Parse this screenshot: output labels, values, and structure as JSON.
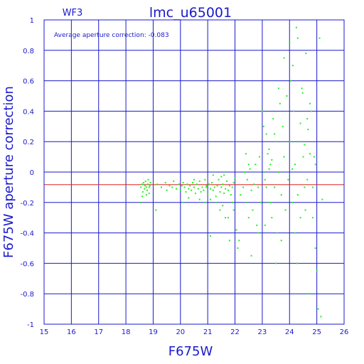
{
  "chart_data": {
    "type": "scatter",
    "title": "lmc_u65001",
    "chip_label": "WF3",
    "annotation": "Average aperture correction: -0.083",
    "xlabel": "F675W",
    "ylabel": "F675W aperture correction",
    "xlim": [
      15,
      26
    ],
    "ylim": [
      -1,
      1
    ],
    "xticks": [
      "15",
      "16",
      "17",
      "18",
      "19",
      "20",
      "21",
      "22",
      "23",
      "24",
      "25",
      "26"
    ],
    "yticks": [
      "1",
      "0.8",
      "0.6",
      "0.4",
      "0.2",
      "0",
      "-0.2",
      "-0.4",
      "-0.6",
      "-0.8",
      "-1"
    ],
    "grid": true,
    "reference_line": {
      "y": -0.083,
      "color": "#dd2222"
    },
    "colors": {
      "axes": "#1a1acc",
      "points": "#22ee22",
      "reference": "#dd2222"
    },
    "series": [
      {
        "points": [
          [
            18.55,
            -0.1
          ],
          [
            18.6,
            -0.08
          ],
          [
            18.62,
            -0.13
          ],
          [
            18.65,
            -0.07
          ],
          [
            18.68,
            -0.11
          ],
          [
            18.7,
            -0.09
          ],
          [
            18.72,
            -0.06
          ],
          [
            18.75,
            -0.1
          ],
          [
            18.78,
            -0.12
          ],
          [
            18.8,
            -0.08
          ],
          [
            18.82,
            -0.05
          ],
          [
            18.85,
            -0.1
          ],
          [
            18.88,
            -0.09
          ],
          [
            18.9,
            -0.07
          ],
          [
            18.55,
            -0.2
          ],
          [
            18.6,
            -0.16
          ],
          [
            18.75,
            -0.15
          ],
          [
            18.85,
            -0.14
          ],
          [
            19.1,
            -0.25
          ],
          [
            19.15,
            -0.08
          ],
          [
            19.3,
            -0.1
          ],
          [
            19.45,
            -0.07
          ],
          [
            19.5,
            -0.12
          ],
          [
            19.6,
            -0.09
          ],
          [
            19.7,
            -0.1
          ],
          [
            19.75,
            -0.06
          ],
          [
            19.85,
            -0.11
          ],
          [
            19.95,
            -0.08
          ],
          [
            20.0,
            -0.12
          ],
          [
            20.05,
            -0.09
          ],
          [
            20.1,
            -0.07
          ],
          [
            20.15,
            -0.1
          ],
          [
            20.2,
            -0.13
          ],
          [
            20.25,
            -0.08
          ],
          [
            20.3,
            -0.11
          ],
          [
            20.35,
            -0.09
          ],
          [
            20.4,
            -0.12
          ],
          [
            20.45,
            -0.07
          ],
          [
            20.5,
            -0.1
          ],
          [
            20.55,
            -0.14
          ],
          [
            20.6,
            -0.08
          ],
          [
            20.65,
            -0.11
          ],
          [
            20.7,
            -0.06
          ],
          [
            20.75,
            -0.13
          ],
          [
            20.8,
            -0.1
          ],
          [
            20.85,
            -0.12
          ],
          [
            20.9,
            -0.05
          ],
          [
            20.95,
            -0.09
          ],
          [
            21.0,
            -0.15
          ],
          [
            21.05,
            -0.08
          ],
          [
            21.1,
            -0.11
          ],
          [
            21.15,
            -0.07
          ],
          [
            21.2,
            -0.12
          ],
          [
            21.25,
            -0.1
          ],
          [
            21.3,
            -0.16
          ],
          [
            21.35,
            -0.09
          ],
          [
            21.4,
            -0.05
          ],
          [
            21.45,
            -0.13
          ],
          [
            21.5,
            -0.1
          ],
          [
            21.55,
            -0.08
          ],
          [
            21.6,
            -0.14
          ],
          [
            21.65,
            -0.11
          ],
          [
            21.7,
            -0.06
          ],
          [
            21.75,
            -0.12
          ],
          [
            21.8,
            -0.09
          ],
          [
            21.85,
            -0.15
          ],
          [
            21.9,
            -0.1
          ],
          [
            21.95,
            -0.07
          ],
          [
            20.1,
            -0.2
          ],
          [
            20.3,
            -0.17
          ],
          [
            20.5,
            -0.05
          ],
          [
            20.7,
            -0.18
          ],
          [
            20.9,
            -0.2
          ],
          [
            21.1,
            -0.18
          ],
          [
            21.2,
            -0.02
          ],
          [
            21.3,
            -0.2
          ],
          [
            21.45,
            -0.25
          ],
          [
            21.55,
            -0.22
          ],
          [
            21.65,
            -0.3
          ],
          [
            21.75,
            -0.3
          ],
          [
            21.8,
            -0.45
          ],
          [
            21.9,
            -0.2
          ],
          [
            21.95,
            -0.25
          ],
          [
            22.0,
            -0.04
          ],
          [
            22.05,
            -0.38
          ],
          [
            22.1,
            -0.5
          ],
          [
            22.15,
            -0.45
          ],
          [
            21.1,
            -0.42
          ],
          [
            21.5,
            -0.03
          ],
          [
            20.95,
            -0.1
          ],
          [
            21.6,
            -0.02
          ],
          [
            22.2,
            -0.15
          ],
          [
            22.3,
            -0.1
          ],
          [
            22.35,
            0.0
          ],
          [
            22.4,
            -0.2
          ],
          [
            22.45,
            -0.05
          ],
          [
            22.5,
            -0.3
          ],
          [
            22.55,
            0.02
          ],
          [
            22.6,
            -0.12
          ],
          [
            22.65,
            -0.25
          ],
          [
            22.7,
            -0.08
          ],
          [
            22.75,
            0.05
          ],
          [
            22.8,
            -0.35
          ],
          [
            22.85,
            -0.1
          ],
          [
            22.9,
            0.1
          ],
          [
            22.95,
            -0.2
          ],
          [
            22.4,
            0.12
          ],
          [
            22.6,
            -0.55
          ],
          [
            22.85,
            -0.4
          ],
          [
            22.5,
            0.05
          ],
          [
            23.0,
            0.4
          ],
          [
            23.05,
            0.3
          ],
          [
            23.1,
            -0.05
          ],
          [
            23.15,
            0.25
          ],
          [
            23.2,
            -0.2
          ],
          [
            23.25,
            0.15
          ],
          [
            23.3,
            0.05
          ],
          [
            23.35,
            -0.3
          ],
          [
            23.4,
            0.35
          ],
          [
            23.45,
            -0.1
          ],
          [
            23.5,
            0.2
          ],
          [
            23.55,
            -0.4
          ],
          [
            23.6,
            0.0
          ],
          [
            23.65,
            0.45
          ],
          [
            23.7,
            -0.15
          ],
          [
            23.75,
            0.3
          ],
          [
            23.8,
            0.1
          ],
          [
            23.85,
            -0.25
          ],
          [
            23.9,
            0.5
          ],
          [
            23.95,
            -0.05
          ],
          [
            23.05,
            0.0
          ],
          [
            23.15,
            -0.1
          ],
          [
            23.25,
            0.02
          ],
          [
            23.35,
            0.08
          ],
          [
            23.5,
            -0.6
          ],
          [
            23.7,
            -0.45
          ],
          [
            23.6,
            0.55
          ],
          [
            23.8,
            0.75
          ],
          [
            23.1,
            -0.35
          ],
          [
            23.2,
            0.12
          ],
          [
            23.45,
            0.25
          ],
          [
            23.3,
            -0.2
          ],
          [
            24.0,
            0.85
          ],
          [
            24.05,
            0.6
          ],
          [
            24.1,
            -0.2
          ],
          [
            24.15,
            0.4
          ],
          [
            24.2,
            0.05
          ],
          [
            24.25,
            0.95
          ],
          [
            24.3,
            0.88
          ],
          [
            24.35,
            0.2
          ],
          [
            24.4,
            -0.3
          ],
          [
            24.45,
            0.55
          ],
          [
            24.5,
            0.1
          ],
          [
            24.55,
            -0.1
          ],
          [
            24.6,
            0.78
          ],
          [
            24.65,
            0.35
          ],
          [
            24.7,
            -0.8
          ],
          [
            24.75,
            0.12
          ],
          [
            24.8,
            0.4
          ],
          [
            24.85,
            -0.3
          ],
          [
            24.9,
            0.1
          ],
          [
            24.95,
            -0.5
          ],
          [
            25.0,
            -0.65
          ],
          [
            25.05,
            -0.9
          ],
          [
            25.1,
            0.88
          ],
          [
            25.15,
            -0.95
          ],
          [
            25.2,
            -0.18
          ],
          [
            24.1,
            0.02
          ],
          [
            24.2,
            -0.4
          ],
          [
            24.3,
            -0.15
          ],
          [
            24.4,
            0.32
          ],
          [
            24.55,
            0.18
          ],
          [
            24.65,
            -0.05
          ],
          [
            24.75,
            0.45
          ],
          [
            24.85,
            -0.1
          ],
          [
            24.95,
            0.05
          ],
          [
            24.02,
            0.2
          ],
          [
            24.12,
            0.7
          ],
          [
            24.28,
            -0.6
          ],
          [
            24.48,
            0.52
          ],
          [
            24.58,
            -0.25
          ],
          [
            24.68,
            0.28
          ]
        ]
      }
    ]
  }
}
